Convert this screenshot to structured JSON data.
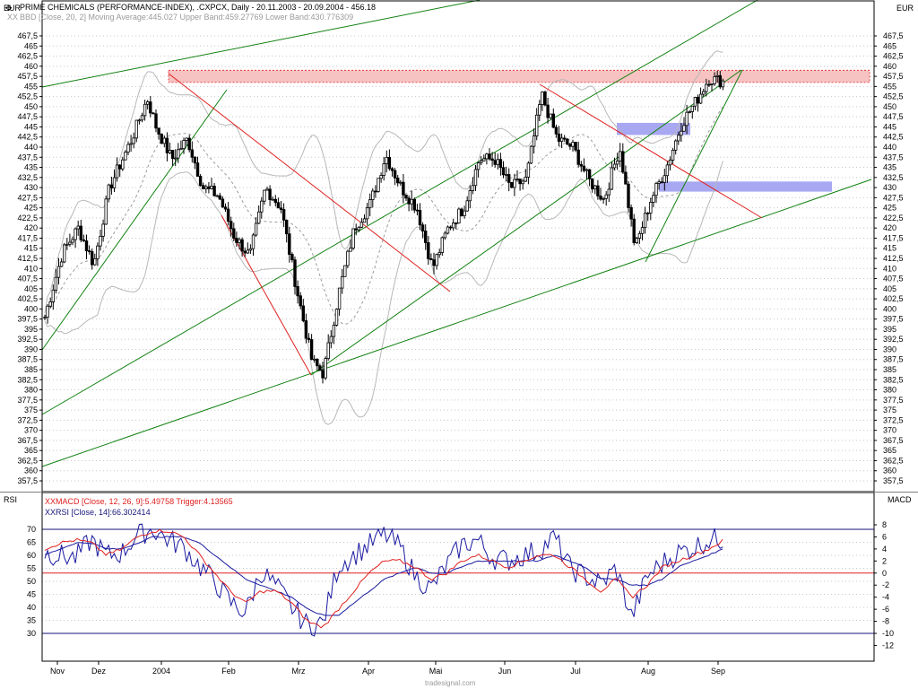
{
  "header": {
    "title": "PRIME CHEMICALS (PERFORMANCE-INDEX), .CXPCX, Daily - 20.11.2003 - 20.09.2004 - 456.18",
    "bbd_legend": "BBD [Close, 20, 2] Moving Average:445.027 Upper Band:459.27769 Lower Band:430.776309",
    "currency_left": "EUR",
    "currency_right": "EUR",
    "macd_legend": "MACD [Close, 12, 26, 9]:5.49758 Trigger:4.13565",
    "rsi_legend": "RSI [Close, 14]:66.302414",
    "lower_left_label": "RSI",
    "lower_right_label": "MACD",
    "watermark": "tradesignal.com"
  },
  "chart_data": [
    {
      "type": "candlestick",
      "name": "PRIME CHEMICALS (PERFORMANCE-INDEX)",
      "ylim": [
        355,
        470
      ],
      "yticks": [
        "467,5",
        "465",
        "462,5",
        "460",
        "457,5",
        "455",
        "452,5",
        "450",
        "447,5",
        "445",
        "442,5",
        "440",
        "437,5",
        "435",
        "432,5",
        "430",
        "427,5",
        "425",
        "422,5",
        "420",
        "417,5",
        "415",
        "412,5",
        "410",
        "407,5",
        "405",
        "402,5",
        "400",
        "397,5",
        "395",
        "392,5",
        "390",
        "387,5",
        "385",
        "382,5",
        "380",
        "377,5",
        "375",
        "372,5",
        "370",
        "367,5",
        "365",
        "362,5",
        "360",
        "357,5"
      ],
      "xticks": [
        "Nov",
        "Dez",
        "2004",
        "Feb",
        "Mrz",
        "Apr",
        "Mai",
        "Jun",
        "Jul",
        "Aug",
        "Sep"
      ],
      "close_path": [
        [
          "2003-11-20",
          398
        ],
        [
          "2003-11-28",
          414
        ],
        [
          "2003-12-05",
          420
        ],
        [
          "2003-12-12",
          411
        ],
        [
          "2003-12-19",
          430
        ],
        [
          "2003-12-29",
          442
        ],
        [
          "2004-01-05",
          452
        ],
        [
          "2004-01-09",
          445
        ],
        [
          "2004-01-16",
          437
        ],
        [
          "2004-01-23",
          442
        ],
        [
          "2004-01-30",
          430
        ],
        [
          "2004-02-06",
          428
        ],
        [
          "2004-02-13",
          418
        ],
        [
          "2004-02-20",
          413
        ],
        [
          "2004-02-27",
          430
        ],
        [
          "2004-03-05",
          425
        ],
        [
          "2004-03-12",
          405
        ],
        [
          "2004-03-19",
          387
        ],
        [
          "2004-03-24",
          384
        ],
        [
          "2004-03-31",
          404
        ],
        [
          "2004-04-07",
          420
        ],
        [
          "2004-04-14",
          426
        ],
        [
          "2004-04-21",
          438
        ],
        [
          "2004-04-28",
          430
        ],
        [
          "2004-05-05",
          425
        ],
        [
          "2004-05-12",
          410
        ],
        [
          "2004-05-19",
          420
        ],
        [
          "2004-05-26",
          425
        ],
        [
          "2004-06-02",
          437
        ],
        [
          "2004-06-09",
          437
        ],
        [
          "2004-06-16",
          430
        ],
        [
          "2004-06-23",
          432
        ],
        [
          "2004-06-30",
          453
        ],
        [
          "2004-07-07",
          442
        ],
        [
          "2004-07-14",
          440
        ],
        [
          "2004-07-21",
          432
        ],
        [
          "2004-07-28",
          427
        ],
        [
          "2004-08-04",
          440
        ],
        [
          "2004-08-11",
          415
        ],
        [
          "2004-08-18",
          427
        ],
        [
          "2004-08-25",
          435
        ],
        [
          "2004-09-01",
          446
        ],
        [
          "2004-09-08",
          452
        ],
        [
          "2004-09-13",
          457
        ],
        [
          "2004-09-20",
          456.18
        ]
      ],
      "bollinger": {
        "moving_average": 445.027,
        "upper_band": 459.27769,
        "lower_band": 430.776309
      },
      "resistance_zones": [
        [
          456,
          459
        ],
        [
          443,
          446
        ],
        [
          429,
          431.5
        ]
      ],
      "trendlines_count": {
        "green": 6,
        "red": 3
      }
    },
    {
      "type": "line",
      "name": "RSI / MACD",
      "rsi_yticks": [
        "70",
        "65",
        "60",
        "55",
        "50",
        "45",
        "40",
        "35",
        "30"
      ],
      "macd_yticks": [
        "8",
        "6",
        "4",
        "2",
        "0",
        "-2",
        "-4",
        "-6",
        "-8",
        "-10",
        "-12"
      ],
      "rsi_ylim": [
        25,
        75
      ],
      "macd_ylim": [
        -13,
        9
      ],
      "rsi_reference_lines": [
        30,
        70
      ],
      "series": [
        {
          "name": "RSI [Close, 14]",
          "values": [
            61,
            60,
            59,
            66,
            60,
            61,
            68,
            70,
            66,
            63,
            56,
            50,
            42,
            38,
            54,
            48,
            40,
            33,
            34,
            56,
            60,
            64,
            68,
            63,
            52,
            47,
            56,
            64,
            66,
            59,
            58,
            60,
            62,
            67,
            55,
            52,
            49,
            55,
            36,
            52,
            57,
            61,
            63,
            66,
            66.3
          ]
        },
        {
          "name": "MACD [Close, 12, 26, 9]",
          "values": [
            4,
            5,
            5.5,
            5,
            3,
            4,
            6,
            7,
            7,
            6,
            3,
            0,
            -3,
            -5,
            -3,
            -3,
            -5,
            -8,
            -9,
            -6,
            -3,
            0,
            2,
            2,
            1,
            -1,
            0,
            2,
            3,
            2,
            1,
            2,
            3,
            3,
            1,
            -1,
            -3,
            -1,
            -4,
            -2,
            1,
            2,
            3,
            4,
            5.5
          ]
        },
        {
          "name": "Trigger",
          "values": [
            3,
            4,
            5,
            5,
            4,
            4,
            5,
            6,
            6,
            6,
            5,
            3,
            1,
            -1,
            -2,
            -3,
            -4,
            -6,
            -7,
            -7,
            -5,
            -3,
            -1,
            0,
            1,
            0,
            0,
            1,
            2,
            2,
            2,
            2,
            2,
            3,
            2,
            1,
            -1,
            -1,
            -2,
            -2,
            -1,
            1,
            2,
            3,
            4.1
          ]
        }
      ]
    }
  ],
  "colors": {
    "price": "#000000",
    "bands": "#b8b8b8",
    "ma": "#9a9a9a",
    "green": "#128212",
    "red": "#e02020",
    "zone_red": "#f6c2c2",
    "zone_blue": "#a8a8f2",
    "macd": "#e02020",
    "trigger": "#1a1aa0",
    "rsi": "#1a1aa0",
    "ref_blue": "#16167a",
    "ref_red": "#e02020"
  }
}
